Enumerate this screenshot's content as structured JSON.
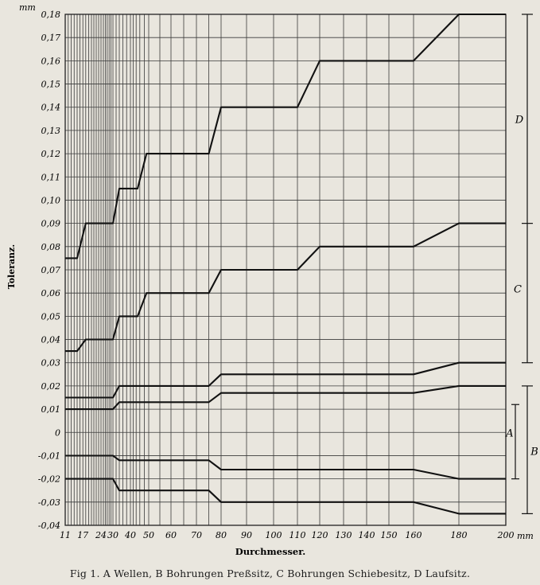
{
  "chart_data": {
    "type": "line",
    "title": "",
    "caption": "Fig 1.  A Wellen, B Bohrungen Preßsitz, C Bohrungen Schiebesitz, D Laufsitz.",
    "ylabel": "Toleranz.",
    "yunit": "mm",
    "xlabel": "Durchmesser.",
    "xunit": "mm",
    "x_ticks": [
      "11",
      "17",
      "24",
      "30",
      "40",
      "50",
      "60",
      "70",
      "80",
      "90",
      "100",
      "110",
      "120",
      "130",
      "140",
      "150",
      "160",
      "180",
      "200"
    ],
    "y_ticks": [
      "0,18",
      "0,17",
      "0,16",
      "0,15",
      "0,14",
      "0,13",
      "0,12",
      "0,11",
      "0,10",
      "0,09",
      "0,08",
      "0,07",
      "0,06",
      "0,05",
      "0,04",
      "0,03",
      "0,02",
      "0,01",
      "0",
      "-0,01",
      "-0,02",
      "-0,03",
      "-0,04"
    ],
    "ylim": [
      -0.04,
      0.18
    ],
    "grid": true,
    "zone_labels": [
      "D",
      "C",
      "A",
      "B"
    ],
    "series": [
      {
        "x": [
          11,
          15,
          18,
          20,
          22,
          26,
          30,
          34,
          37,
          42,
          45,
          49,
          55,
          60,
          65,
          70,
          75,
          80,
          90,
          100,
          110,
          120,
          160,
          180,
          200
        ],
        "y": [
          0.075,
          0.075,
          0.09,
          0.09,
          0.09,
          0.09,
          0.09,
          0.105,
          0.105,
          0.105,
          0.105,
          0.12,
          0.12,
          0.12,
          0.12,
          0.12,
          0.12,
          0.14,
          0.14,
          0.14,
          0.14,
          0.16,
          0.16,
          0.18,
          0.18
        ]
      },
      {
        "x": [
          11,
          15,
          18,
          22,
          26,
          30,
          34,
          37,
          45,
          49,
          75,
          80,
          110,
          120,
          160,
          180,
          200
        ],
        "y": [
          0.035,
          0.035,
          0.04,
          0.04,
          0.04,
          0.04,
          0.05,
          0.05,
          0.05,
          0.06,
          0.06,
          0.07,
          0.07,
          0.08,
          0.08,
          0.09,
          0.09
        ]
      },
      {
        "x": [
          11,
          30,
          34,
          75,
          80,
          160,
          180,
          200
        ],
        "y": [
          0.015,
          0.015,
          0.02,
          0.02,
          0.025,
          0.025,
          0.03,
          0.03
        ]
      },
      {
        "x": [
          11,
          30,
          34,
          75,
          80,
          160,
          180,
          200
        ],
        "y": [
          0.01,
          0.01,
          0.013,
          0.013,
          0.017,
          0.017,
          0.02,
          0.02
        ]
      },
      {
        "x": [
          11,
          30,
          34,
          75,
          80,
          160,
          180,
          200
        ],
        "y": [
          -0.01,
          -0.01,
          -0.012,
          -0.012,
          -0.016,
          -0.016,
          -0.02,
          -0.02
        ]
      },
      {
        "x": [
          11,
          30,
          34,
          75,
          80,
          160,
          180,
          200
        ],
        "y": [
          -0.02,
          -0.02,
          -0.025,
          -0.025,
          -0.03,
          -0.03,
          -0.035,
          -0.035
        ]
      }
    ]
  }
}
